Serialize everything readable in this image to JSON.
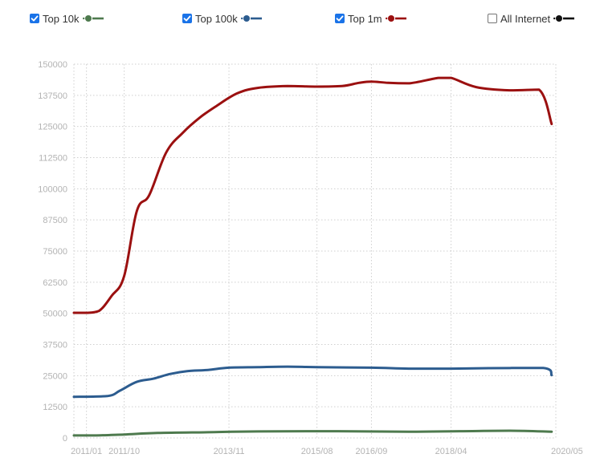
{
  "legend": {
    "items": [
      {
        "label": "Top 10k",
        "checked": true,
        "color": "#4e7a4e"
      },
      {
        "label": "Top 100k",
        "checked": true,
        "color": "#2c5c8f"
      },
      {
        "label": "Top 1m",
        "checked": true,
        "color": "#9b1010"
      },
      {
        "label": "All Internet",
        "checked": false,
        "color": "#111111"
      }
    ]
  },
  "chart_data": {
    "type": "line",
    "title": "",
    "xlabel": "",
    "ylabel": "",
    "x_tick_labels": [
      "2011/01",
      "2011/10",
      "2013/11",
      "2015/08",
      "2016/09",
      "2018/04",
      "2020/05"
    ],
    "y_tick_labels": [
      "0",
      "12500",
      "25000",
      "37500",
      "50000",
      "62500",
      "75000",
      "87500",
      "100000",
      "112500",
      "125000",
      "137500",
      "150000"
    ],
    "ylim": [
      0,
      150000
    ],
    "xlim": [
      "2010-10",
      "2020-05"
    ],
    "grid": true,
    "legend_position": "top",
    "series": [
      {
        "name": "Top 10k",
        "color": "#4e7a4e",
        "points": [
          [
            "2010-10",
            1000
          ],
          [
            "2011-03",
            1000
          ],
          [
            "2011-10",
            1400
          ],
          [
            "2012-06",
            2000
          ],
          [
            "2013-06",
            2300
          ],
          [
            "2014-06",
            2600
          ],
          [
            "2016-01",
            2700
          ],
          [
            "2017-06",
            2500
          ],
          [
            "2018-06",
            2700
          ],
          [
            "2019-06",
            2900
          ],
          [
            "2020-04",
            2500
          ]
        ]
      },
      {
        "name": "Top 100k",
        "color": "#2c5c8f",
        "points": [
          [
            "2010-10",
            16500
          ],
          [
            "2011-06",
            16800
          ],
          [
            "2011-09",
            19000
          ],
          [
            "2012-01",
            22500
          ],
          [
            "2012-05",
            23800
          ],
          [
            "2012-09",
            25700
          ],
          [
            "2013-01",
            26800
          ],
          [
            "2013-06",
            27300
          ],
          [
            "2013-11",
            28200
          ],
          [
            "2014-06",
            28400
          ],
          [
            "2015-01",
            28600
          ],
          [
            "2015-08",
            28400
          ],
          [
            "2016-09",
            28200
          ],
          [
            "2017-06",
            27800
          ],
          [
            "2018-04",
            27800
          ],
          [
            "2019-01",
            28000
          ],
          [
            "2020-02",
            28100
          ],
          [
            "2020-04",
            25200
          ]
        ]
      },
      {
        "name": "Top 1m",
        "color": "#9b1010",
        "points": [
          [
            "2010-10",
            50200
          ],
          [
            "2011-01",
            50200
          ],
          [
            "2011-04",
            51000
          ],
          [
            "2011-07",
            57000
          ],
          [
            "2011-10",
            65000
          ],
          [
            "2012-01",
            91000
          ],
          [
            "2012-04",
            97500
          ],
          [
            "2012-08",
            114500
          ],
          [
            "2012-12",
            122500
          ],
          [
            "2013-04",
            128500
          ],
          [
            "2013-08",
            133200
          ],
          [
            "2014-01",
            138300
          ],
          [
            "2014-06",
            140500
          ],
          [
            "2015-01",
            141200
          ],
          [
            "2015-08",
            141000
          ],
          [
            "2016-02",
            141200
          ],
          [
            "2016-06",
            142500
          ],
          [
            "2016-09",
            143000
          ],
          [
            "2017-01",
            142500
          ],
          [
            "2017-06",
            142300
          ],
          [
            "2018-01",
            144500
          ],
          [
            "2018-04",
            144500
          ],
          [
            "2018-10",
            140800
          ],
          [
            "2019-06",
            139500
          ],
          [
            "2020-01",
            139800
          ],
          [
            "2020-04",
            126000
          ]
        ]
      }
    ]
  }
}
